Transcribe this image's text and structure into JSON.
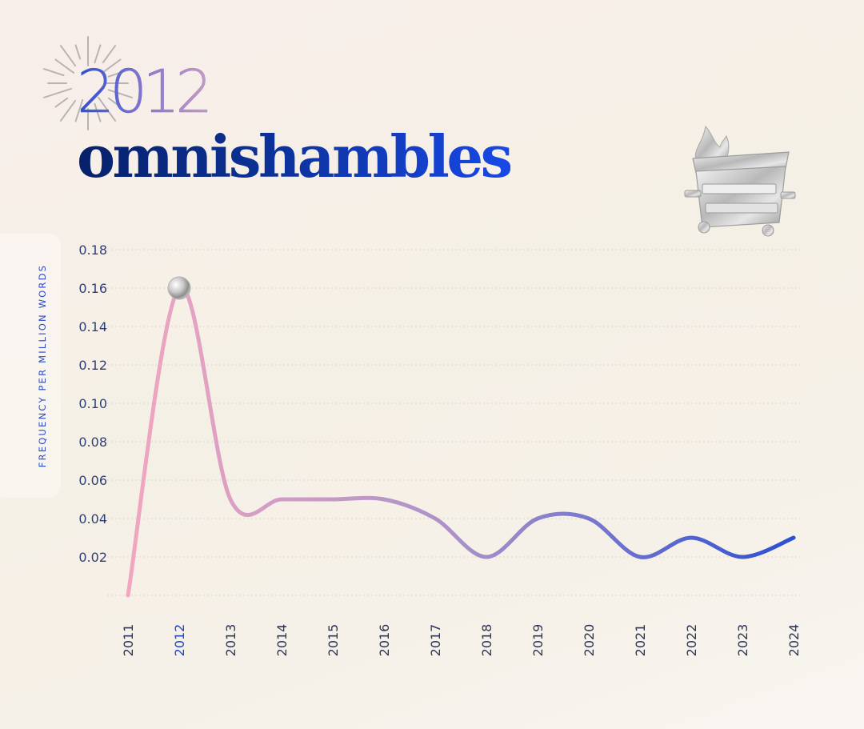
{
  "header": {
    "year": "2012",
    "word": "omnishambles"
  },
  "icons": {
    "burst": "firework-burst-icon",
    "dumpster": "dumpster-fire-icon",
    "marker": "silver-sphere-marker"
  },
  "colors": {
    "line_start": "#f2a6c0",
    "line_mid": "#a991c9",
    "line_end": "#2c4fd4",
    "axis_label": "#2a48c8",
    "title_dark": "#07216a",
    "title_bright": "#1848e6"
  },
  "chart_data": {
    "type": "line",
    "ylabel": "FREQUENCY PER MILLION WORDS",
    "xlabel": "",
    "categories": [
      "2011",
      "2012",
      "2013",
      "2014",
      "2015",
      "2016",
      "2017",
      "2018",
      "2019",
      "2020",
      "2021",
      "2022",
      "2023",
      "2024"
    ],
    "series": [
      {
        "values": [
          0.0,
          0.16,
          0.05,
          0.05,
          0.05,
          0.05,
          0.04,
          0.02,
          0.04,
          0.04,
          0.02,
          0.03,
          0.02,
          0.03
        ]
      }
    ],
    "yticks": [
      "0.02",
      "0.04",
      "0.06",
      "0.08",
      "0.10",
      "0.12",
      "0.14",
      "0.16",
      "0.18"
    ],
    "ylim": [
      0,
      0.18
    ],
    "highlight_category": "2012",
    "grid": "horizontal-dotted",
    "legend": "none"
  }
}
